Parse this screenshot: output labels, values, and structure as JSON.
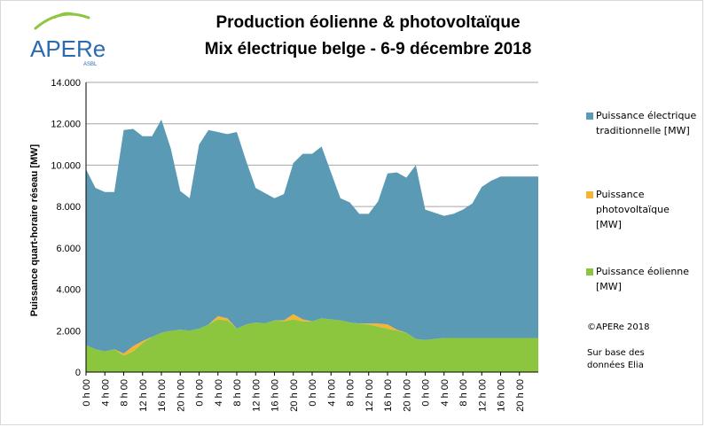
{
  "titles": {
    "line1": "Production éolienne & photovoltaïque",
    "line2": "Mix électrique belge - 6-9 décembre 2018"
  },
  "logo": {
    "text": "APERe",
    "sub": "ASBL",
    "color": "#2a6bb0",
    "accent": "#8dc63f"
  },
  "notes": {
    "copyright": "©APERe 2018",
    "source_line1": "Sur base des",
    "source_line2": "données Elia"
  },
  "legend": [
    {
      "key": "traditional",
      "lines": [
        "Puissance électrique",
        "traditionnelle [MW]"
      ],
      "color": "#5b9ab4"
    },
    {
      "key": "solar",
      "lines": [
        "Puissance",
        "photovoltaïque",
        "[MW]"
      ],
      "color": "#f5b533"
    },
    {
      "key": "wind",
      "lines": [
        "Puissance éolienne",
        "[MW]"
      ],
      "color": "#8cc63e"
    }
  ],
  "chart_data": {
    "type": "area",
    "stacked": true,
    "ylabel": "Puissance quart-horaire réseau [MW]",
    "ylim": [
      0,
      14000
    ],
    "yticks": [
      0,
      2000,
      4000,
      6000,
      8000,
      10000,
      12000,
      14000
    ],
    "ytick_labels": [
      "0",
      "2.000",
      "4.000",
      "6.000",
      "8.000",
      "10.000",
      "12.000",
      "14.000"
    ],
    "x_hours": [
      0,
      2,
      4,
      6,
      8,
      10,
      12,
      14,
      16,
      18,
      20,
      22,
      24,
      26,
      28,
      30,
      32,
      34,
      36,
      38,
      40,
      42,
      44,
      46,
      48,
      50,
      52,
      54,
      56,
      58,
      60,
      62,
      64,
      66,
      68,
      70,
      72,
      74,
      76,
      78,
      80,
      82,
      84,
      86,
      88,
      90,
      92,
      94,
      96
    ],
    "xtick_hours": [
      0,
      4,
      8,
      12,
      16,
      20,
      24,
      28,
      32,
      36,
      40,
      44,
      48,
      52,
      56,
      60,
      64,
      68,
      72,
      76,
      80,
      84,
      88,
      92
    ],
    "xtick_labels": [
      "0 h 00",
      "4 h 00",
      "8 h 00",
      "12 h 00",
      "16 h 00",
      "20 h 00",
      "0 h 00",
      "4 h 00",
      "8 h 00",
      "12 h 00",
      "16 h 00",
      "20 h 00",
      "0 h 00",
      "4 h 00",
      "8 h 00",
      "12 h 00",
      "16 h 00",
      "20 h 00",
      "0 h 00",
      "4 h 00",
      "8 h 00",
      "12 h 00",
      "16 h 00",
      "20 h 00"
    ],
    "grid": true,
    "legend_position": "right",
    "series": [
      {
        "name": "Puissance éolienne [MW]",
        "color": "#8cc63e",
        "values": [
          1300,
          1100,
          1000,
          1100,
          800,
          1000,
          1400,
          1700,
          1900,
          2000,
          2050,
          2000,
          2100,
          2300,
          2550,
          2500,
          2100,
          2300,
          2400,
          2350,
          2500,
          2450,
          2550,
          2450,
          2450,
          2600,
          2550,
          2500,
          2400,
          2350,
          2300,
          2200,
          2100,
          2000,
          1900,
          1600,
          1550,
          1600,
          1650,
          1650,
          1650,
          1650,
          1650,
          1650,
          1650,
          1650,
          1650,
          1650,
          1650
        ]
      },
      {
        "name": "Puissance photovoltaïque [MW]",
        "color": "#f5b533",
        "values": [
          0,
          0,
          0,
          0,
          100,
          250,
          100,
          0,
          0,
          0,
          0,
          0,
          0,
          0,
          150,
          100,
          0,
          0,
          0,
          0,
          0,
          50,
          250,
          100,
          0,
          0,
          0,
          0,
          0,
          0,
          50,
          150,
          200,
          50,
          0,
          0,
          0,
          0,
          0,
          0,
          0,
          0,
          0,
          0,
          0,
          0,
          0,
          0,
          0
        ]
      },
      {
        "name": "Puissance électrique traditionnelle [MW]",
        "color": "#5b9ab4",
        "values": [
          8500,
          7800,
          7700,
          7600,
          10800,
          10500,
          9900,
          9700,
          10300,
          8800,
          6700,
          6400,
          8900,
          9400,
          8900,
          8900,
          9500,
          7900,
          6500,
          6300,
          5900,
          6100,
          7300,
          8000,
          8100,
          8300,
          7100,
          5900,
          5800,
          5300,
          5300,
          5900,
          7300,
          7600,
          7500,
          8400,
          6300,
          6100,
          5900,
          6000,
          6200,
          6500,
          7300,
          7600,
          7800,
          7800,
          7800,
          7800,
          7800
        ]
      }
    ]
  }
}
